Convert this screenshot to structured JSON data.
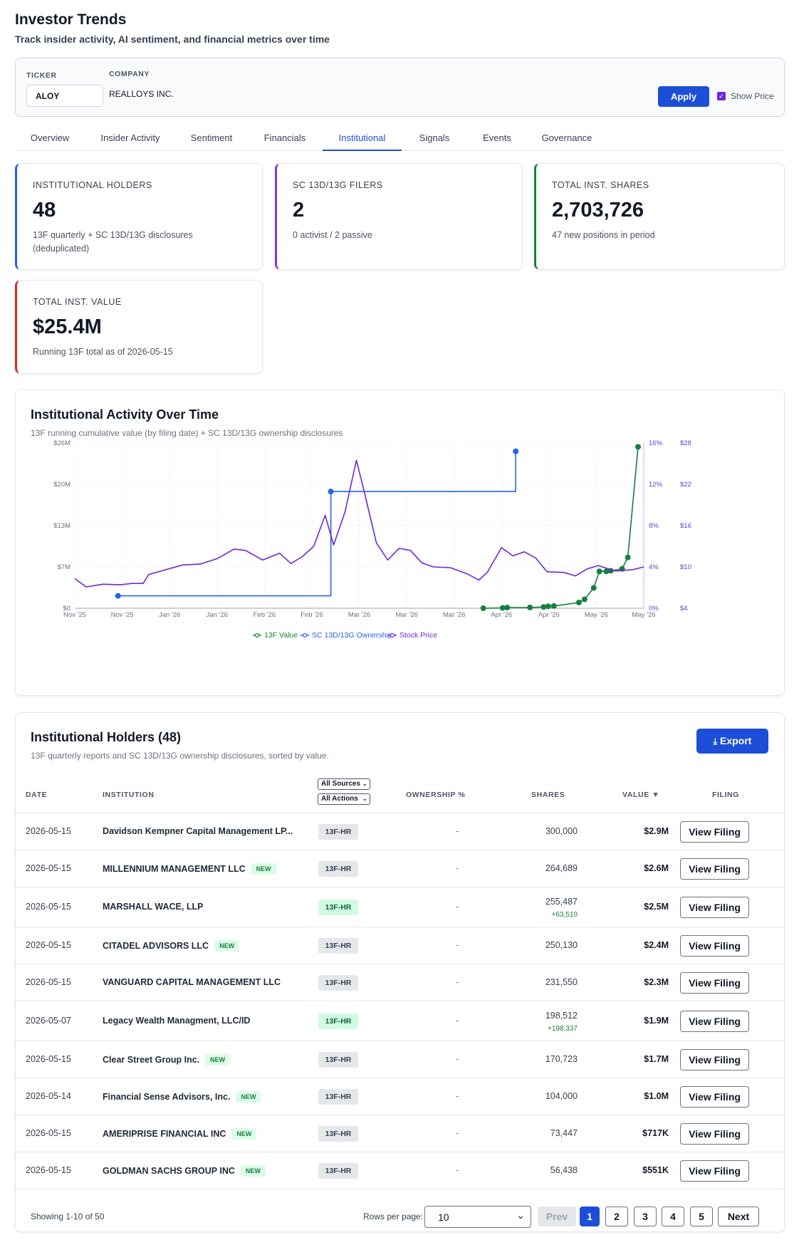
{
  "header": {
    "title": "Investor Trends",
    "subtitle": "Track insider activity, AI sentiment, and financial metrics over time"
  },
  "filters": {
    "ticker_label": "TICKER",
    "ticker_value": "ALOY",
    "company_label": "COMPANY",
    "company_value": "REALLOYS INC.",
    "apply_label": "Apply",
    "show_price_label": "Show Price",
    "show_price_checked": true
  },
  "tabs": [
    "Overview",
    "Insider Activity",
    "Sentiment",
    "Financials",
    "Institutional",
    "Signals",
    "Events",
    "Governance"
  ],
  "active_tab": "Institutional",
  "stats": [
    {
      "label": "INSTITUTIONAL HOLDERS",
      "value": "48",
      "sub": "13F quarterly + SC 13D/13G disclosures (deduplicated)",
      "accent": "#2563eb"
    },
    {
      "label": "SC 13D/13G FILERS",
      "value": "2",
      "sub": "0 activist / 2 passive",
      "accent": "#7c3aed"
    },
    {
      "label": "TOTAL INST. SHARES",
      "value": "2,703,726",
      "sub": "47 new positions in period",
      "accent": "#15803d"
    },
    {
      "label": "TOTAL INST. VALUE",
      "value": "$25.4M",
      "sub": "Running 13F total as of 2026-05-15",
      "accent": "#dc2626"
    }
  ],
  "chart": {
    "title": "Institutional Activity Over Time",
    "description": "13F running cumulative value (by filing date) + SC 13D/13G ownership disclosures"
  },
  "chart_data": {
    "type": "line",
    "x_tick_labels": [
      "Nov '25",
      "Nov '25",
      "Jan '26",
      "Jan '26",
      "Feb '26",
      "Feb '26",
      "Mar '26",
      "Mar '26",
      "Mar '26",
      "Apr '26",
      "Apr '26",
      "May '26",
      "May '26"
    ],
    "y_left_ticks": [
      "$26M",
      "$20M",
      "$13M",
      "$7M",
      "$0"
    ],
    "y_right1_ticks": [
      "16%",
      "12%",
      "8%",
      "4%",
      "0%"
    ],
    "y_right2_ticks": [
      "$28",
      "$22",
      "$16",
      "$10",
      "$4"
    ],
    "grid": true,
    "legend_position": "bottom",
    "series": [
      {
        "name": "13F Value",
        "axis": "left",
        "unit": "USD millions",
        "color": "#15803d",
        "markers": true,
        "points": [
          [
            0.718,
            0.0
          ],
          [
            0.752,
            0.05
          ],
          [
            0.76,
            0.1
          ],
          [
            0.8,
            0.12
          ],
          [
            0.824,
            0.2
          ],
          [
            0.832,
            0.3
          ],
          [
            0.842,
            0.35
          ],
          [
            0.886,
            0.9
          ],
          [
            0.896,
            1.4
          ],
          [
            0.912,
            3.2
          ],
          [
            0.922,
            5.8
          ],
          [
            0.934,
            5.8
          ],
          [
            0.942,
            5.9
          ],
          [
            0.962,
            6.2
          ],
          [
            0.972,
            8.0
          ],
          [
            0.99,
            25.4
          ]
        ]
      },
      {
        "name": "SC 13D/13G Ownership",
        "axis": "right1",
        "unit": "percent",
        "color": "#2563eb",
        "markers": true,
        "points": [
          [
            0.076,
            1.2
          ],
          [
            0.45,
            1.2
          ],
          [
            0.45,
            11.3
          ],
          [
            0.775,
            11.3
          ],
          [
            0.775,
            15.2
          ]
        ]
      },
      {
        "name": "Stock Price",
        "axis": "right2",
        "unit": "USD",
        "color": "#6d28d9",
        "markers": false,
        "points": [
          [
            0.0,
            8.3
          ],
          [
            0.02,
            7.1
          ],
          [
            0.05,
            7.5
          ],
          [
            0.08,
            7.4
          ],
          [
            0.1,
            7.6
          ],
          [
            0.12,
            7.6
          ],
          [
            0.13,
            8.9
          ],
          [
            0.16,
            9.6
          ],
          [
            0.19,
            10.3
          ],
          [
            0.22,
            10.4
          ],
          [
            0.25,
            11.2
          ],
          [
            0.28,
            12.6
          ],
          [
            0.3,
            12.4
          ],
          [
            0.33,
            11.0
          ],
          [
            0.36,
            12.0
          ],
          [
            0.38,
            10.5
          ],
          [
            0.4,
            11.5
          ],
          [
            0.42,
            13.0
          ],
          [
            0.44,
            17.5
          ],
          [
            0.455,
            13.2
          ],
          [
            0.475,
            18.0
          ],
          [
            0.495,
            25.5
          ],
          [
            0.51,
            20.5
          ],
          [
            0.53,
            13.5
          ],
          [
            0.55,
            11.0
          ],
          [
            0.57,
            12.7
          ],
          [
            0.59,
            12.4
          ],
          [
            0.61,
            10.6
          ],
          [
            0.63,
            10.0
          ],
          [
            0.66,
            9.9
          ],
          [
            0.69,
            9.0
          ],
          [
            0.71,
            8.1
          ],
          [
            0.725,
            9.2
          ],
          [
            0.75,
            12.8
          ],
          [
            0.77,
            11.6
          ],
          [
            0.79,
            12.2
          ],
          [
            0.81,
            11.3
          ],
          [
            0.83,
            9.3
          ],
          [
            0.86,
            9.2
          ],
          [
            0.88,
            8.7
          ],
          [
            0.9,
            9.7
          ],
          [
            0.92,
            10.2
          ],
          [
            0.95,
            9.4
          ],
          [
            0.98,
            9.6
          ],
          [
            1.0,
            10.0
          ]
        ]
      }
    ]
  },
  "table": {
    "title": "Institutional Holders (48)",
    "description": "13F quarterly reports and SC 13D/13G ownership disclosures, sorted by value.",
    "export_label": "Export",
    "headers": {
      "date": "DATE",
      "institution": "INSTITUTION",
      "ownership": "OWNERSHIP %",
      "shares": "SHARES",
      "value": "VALUE ▼",
      "filing": "FILING"
    },
    "filter_sources": "All Sources",
    "filter_actions": "All Actions",
    "new_label": "NEW",
    "view_label": "View Filing",
    "rows": [
      {
        "date": "2026-05-15",
        "institution": "Davidson Kempner Capital Management LP...",
        "new": false,
        "form": "13F-HR",
        "form_green": false,
        "ownership": "-",
        "shares": "300,000",
        "change": "",
        "value": "$2.9M"
      },
      {
        "date": "2026-05-15",
        "institution": "MILLENNIUM MANAGEMENT LLC",
        "new": true,
        "form": "13F-HR",
        "form_green": false,
        "ownership": "-",
        "shares": "264,689",
        "change": "",
        "value": "$2.6M"
      },
      {
        "date": "2026-05-15",
        "institution": "MARSHALL WACE, LLP",
        "new": false,
        "form": "13F-HR",
        "form_green": true,
        "ownership": "-",
        "shares": "255,487",
        "change": "+63,510",
        "value": "$2.5M"
      },
      {
        "date": "2026-05-15",
        "institution": "CITADEL ADVISORS LLC",
        "new": true,
        "form": "13F-HR",
        "form_green": false,
        "ownership": "-",
        "shares": "250,130",
        "change": "",
        "value": "$2.4M"
      },
      {
        "date": "2026-05-15",
        "institution": "VANGUARD CAPITAL MANAGEMENT LLC",
        "new": false,
        "form": "13F-HR",
        "form_green": false,
        "ownership": "-",
        "shares": "231,550",
        "change": "",
        "value": "$2.3M"
      },
      {
        "date": "2026-05-07",
        "institution": "Legacy Wealth Managment, LLC/ID",
        "new": false,
        "form": "13F-HR",
        "form_green": true,
        "ownership": "-",
        "shares": "198,512",
        "change": "+198,337",
        "value": "$1.9M"
      },
      {
        "date": "2026-05-15",
        "institution": "Clear Street Group Inc.",
        "new": true,
        "form": "13F-HR",
        "form_green": false,
        "ownership": "-",
        "shares": "170,723",
        "change": "",
        "value": "$1.7M"
      },
      {
        "date": "2026-05-14",
        "institution": "Financial Sense Advisors, Inc.",
        "new": true,
        "form": "13F-HR",
        "form_green": false,
        "ownership": "-",
        "shares": "104,000",
        "change": "",
        "value": "$1.0M"
      },
      {
        "date": "2026-05-15",
        "institution": "AMERIPRISE FINANCIAL INC",
        "new": true,
        "form": "13F-HR",
        "form_green": false,
        "ownership": "-",
        "shares": "73,447",
        "change": "",
        "value": "$717K"
      },
      {
        "date": "2026-05-15",
        "institution": "GOLDMAN SACHS GROUP INC",
        "new": true,
        "form": "13F-HR",
        "form_green": false,
        "ownership": "-",
        "shares": "56,438",
        "change": "",
        "value": "$551K"
      }
    ]
  },
  "pagination": {
    "showing": "Showing 1-10 of 50",
    "rows_label": "Rows per page:",
    "rows_value": "10",
    "prev": "Prev",
    "pages": [
      "1",
      "2",
      "3",
      "4",
      "5"
    ],
    "current_page": "1",
    "next": "Next"
  },
  "icons": {
    "export": "download-icon",
    "sort": "sort-desc-icon",
    "checkbox": "checkbox-checked-icon"
  }
}
